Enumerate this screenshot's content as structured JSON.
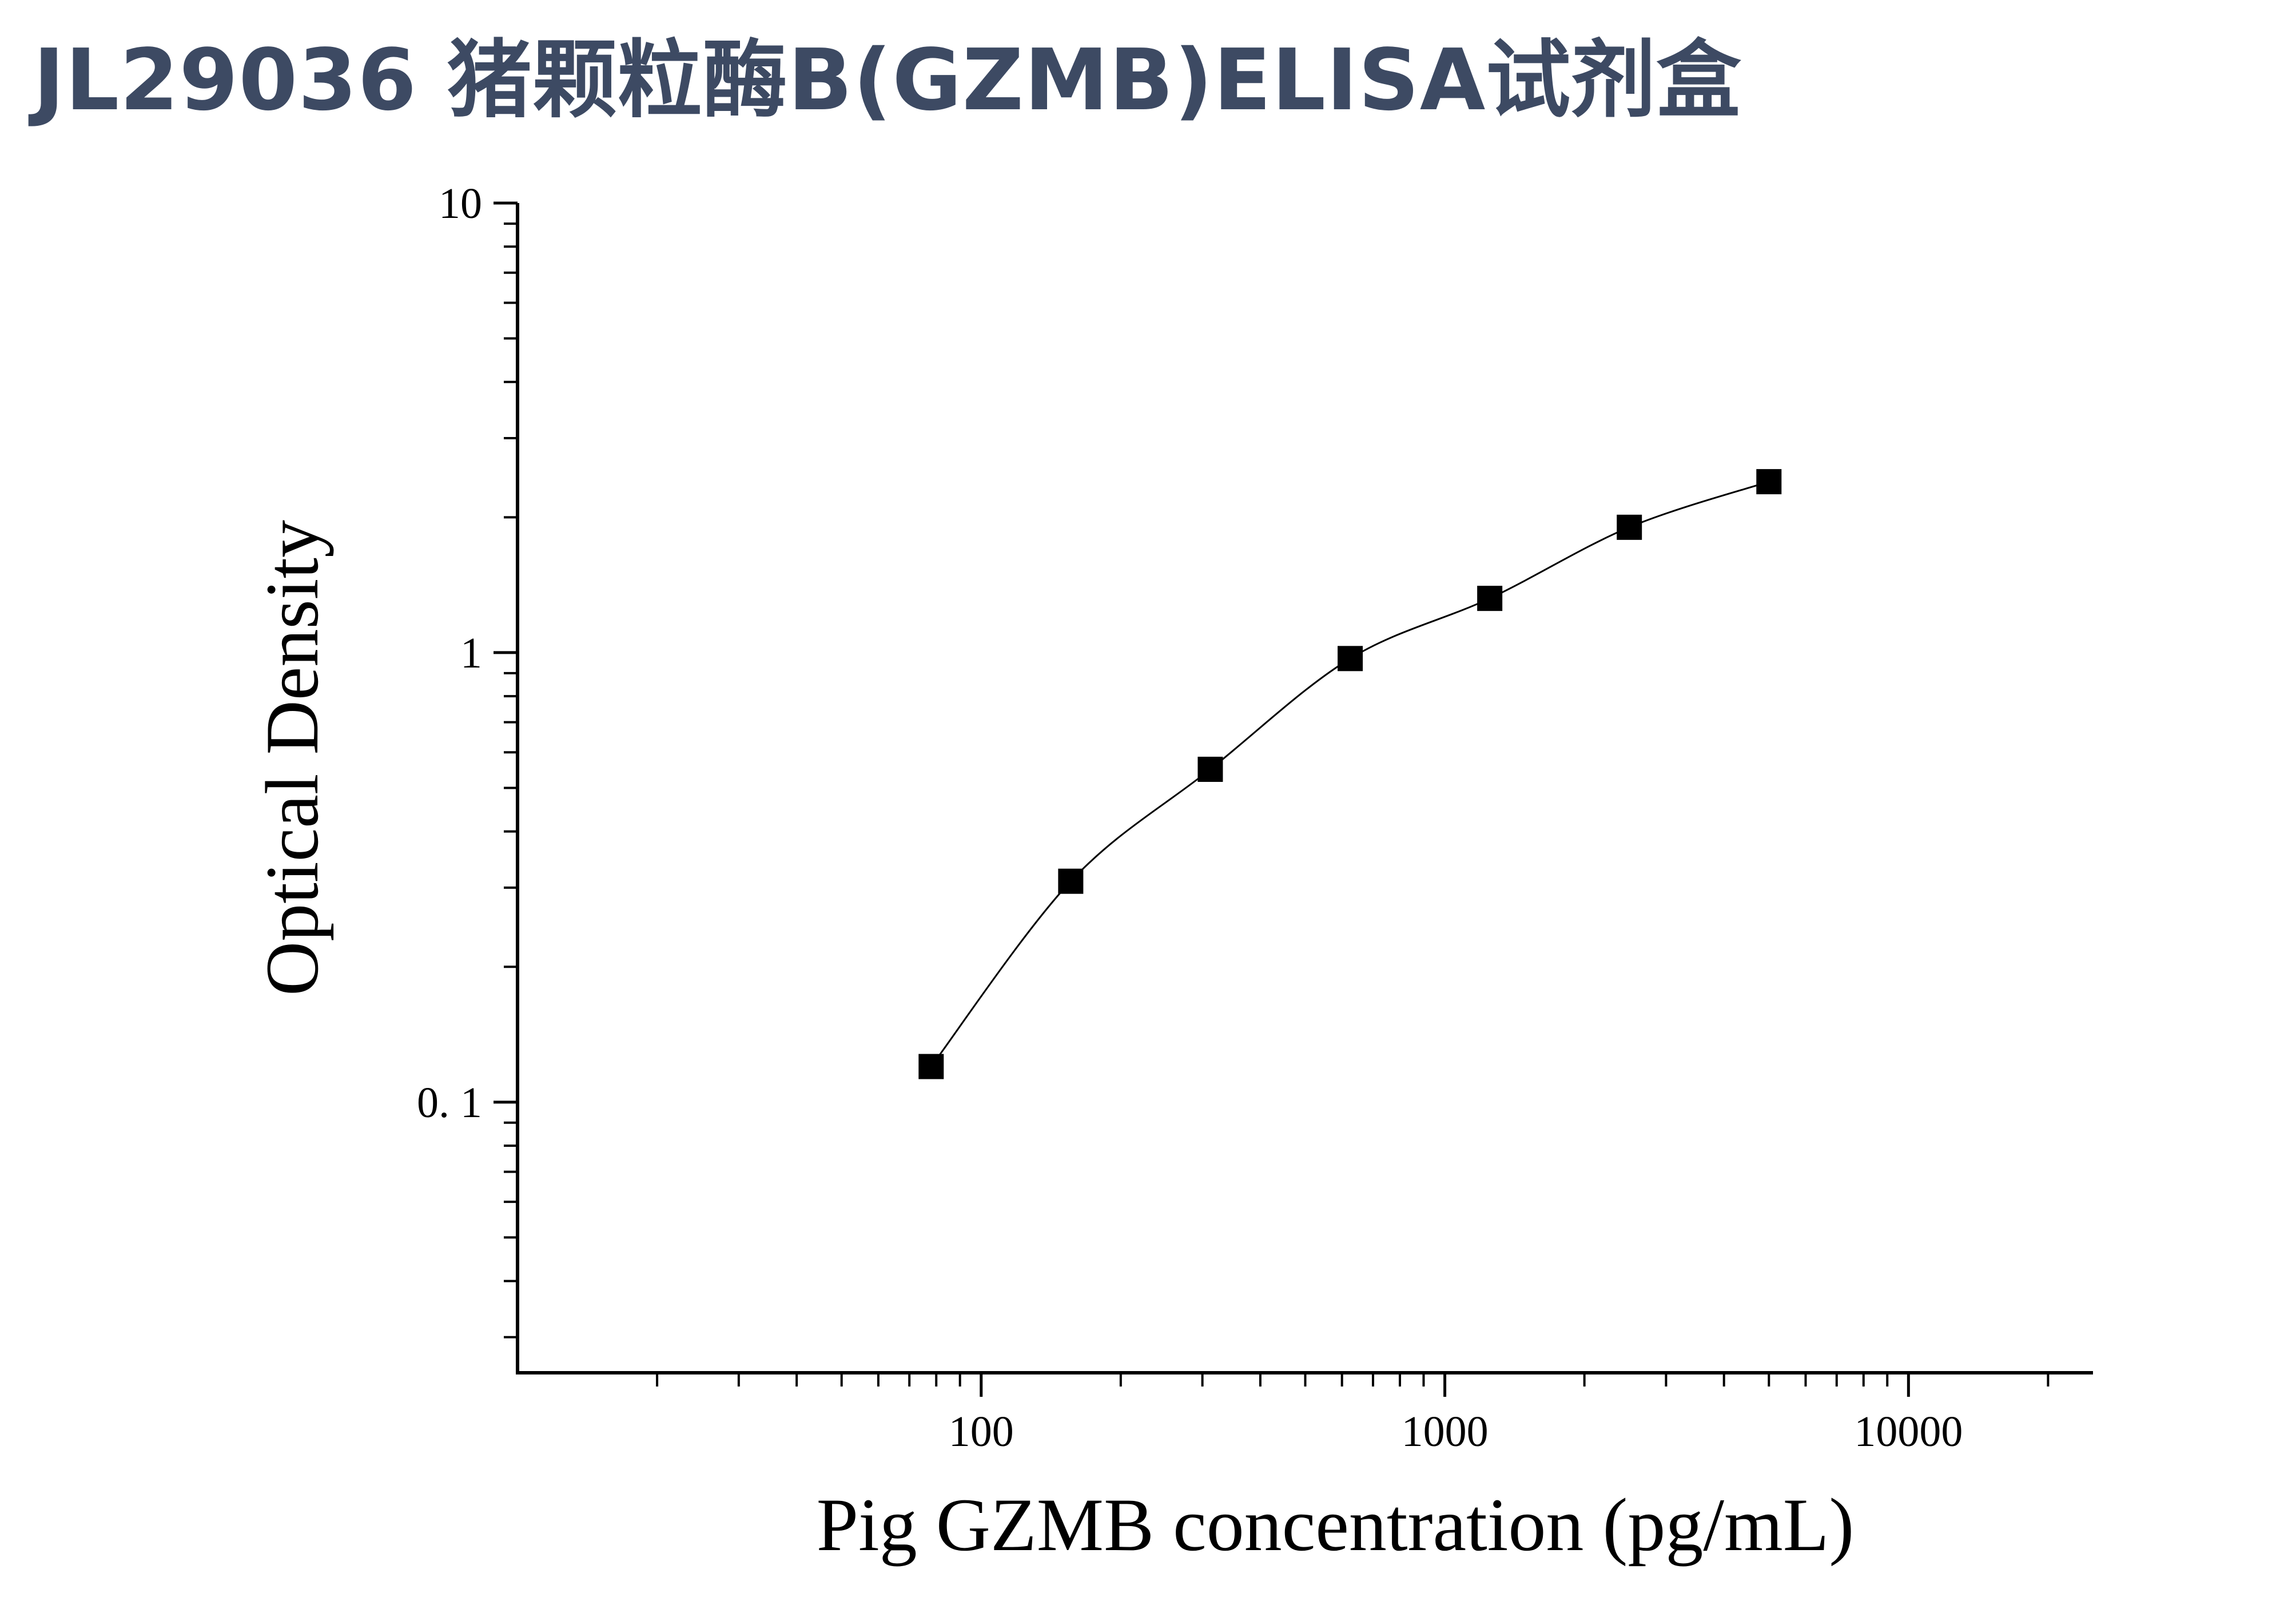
{
  "title": "JL29036 猪颗粒酶B(GZMB)ELISA试剂盒",
  "colors": {
    "title": "#3d4a63",
    "axis": "#000000",
    "marker": "#000000",
    "curve": "#000000"
  },
  "chart_data": {
    "type": "scatter",
    "title": "",
    "xlabel": "Pig GZMB concentration (pg/mL)",
    "ylabel": "Optical Density",
    "x_scale": "log",
    "y_scale": "log",
    "xlim": [
      10,
      25000
    ],
    "ylim": [
      0.025,
      10
    ],
    "x_ticks": [
      {
        "value": 100,
        "label": "100"
      },
      {
        "value": 1000,
        "label": "1000"
      },
      {
        "value": 10000,
        "label": "10000"
      }
    ],
    "y_ticks": [
      {
        "value": 0.1,
        "label": "0. 1"
      },
      {
        "value": 1,
        "label": "1"
      },
      {
        "value": 10,
        "label": "10"
      }
    ],
    "grid": false,
    "legend": "none",
    "series": [
      {
        "marker": "square",
        "fit_line": true,
        "x": [
          78,
          156,
          312,
          625,
          1250,
          2500,
          5000
        ],
        "y": [
          0.12,
          0.31,
          0.55,
          0.97,
          1.32,
          1.9,
          2.4
        ]
      }
    ]
  }
}
